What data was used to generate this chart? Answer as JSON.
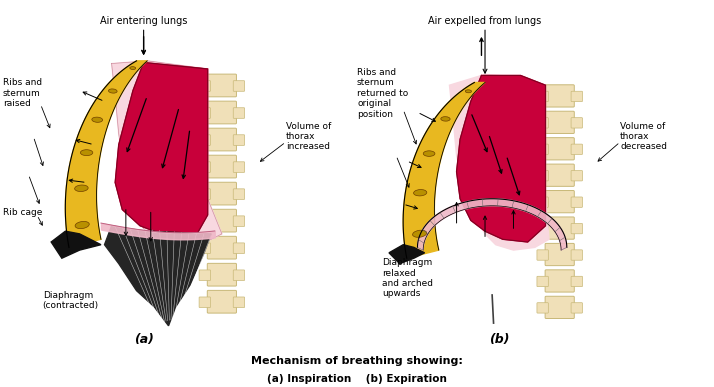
{
  "title": "Mechanism of breathing showing:",
  "subtitle": "(a) Inspiration    (b) Expiration",
  "label_a": "(a)",
  "label_b": "(b)",
  "bg_color": "#ffffff",
  "colors": {
    "lung_red": "#c8003a",
    "lung_red_dark": "#a00030",
    "rib_yellow": "#e8b820",
    "rib_cream": "#f0e0b0",
    "rib_cream2": "#e8d898",
    "diaphragm_pink": "#f0b8c8",
    "pleura_pink": "#f8d8e0",
    "spine_cream": "#f0e0b8",
    "spine_dark": "#c8b878",
    "black": "#000000",
    "dark_gray": "#333333",
    "diaphragm_hatched": "#303030",
    "skin_pink": "#f8d0dc",
    "dark_arch": "#484848"
  },
  "annotations_a": {
    "air_entering": "Air entering lungs",
    "ribs_sternum": "Ribs and\nsternum\nraised",
    "rib_cage": "Rib cage",
    "diaphragm": "Diaphragm\n(contracted)",
    "volume": "Volume of\nthorax\nincreased"
  },
  "annotations_b": {
    "air_expelled": "Air expelled from lungs",
    "ribs_sternum": "Ribs and\nsternum\nreturned to\noriginal\nposition",
    "diaphragm": "Diaphragm\nrelaxed\nand arched\nupwards",
    "volume": "Volume of\nthorax\ndecreased"
  },
  "figsize": [
    7.14,
    3.87
  ],
  "dpi": 100
}
